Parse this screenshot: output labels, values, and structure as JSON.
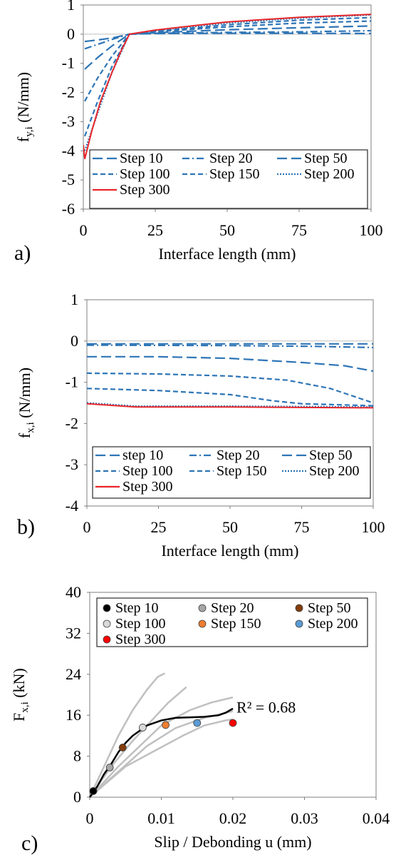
{
  "chart_data": [
    {
      "type": "line",
      "panel_label": "a)",
      "xlabel": "Interface length (mm)",
      "ylabel": "f",
      "ylabel_sub": "y,i",
      "ylabel_unit": " (N/mm)",
      "xlim": [
        0,
        100
      ],
      "ylim": [
        -6,
        1
      ],
      "xticks": [
        "0",
        "25",
        "50",
        "75",
        "100"
      ],
      "yticks": [
        "1",
        "0",
        "-1",
        "-2",
        "-3",
        "-4",
        "-5",
        "-6"
      ],
      "legend_placement": "lower-right",
      "colors": {
        "blue": "#2e75b6",
        "red": "#e8262b"
      },
      "series": [
        {
          "name": "Step 10",
          "color": "#2e75b6",
          "dash": "longdash",
          "points": [
            [
              0.5,
              -0.25
            ],
            [
              5,
              -0.2
            ],
            [
              10,
              -0.13
            ],
            [
              16,
              0
            ],
            [
              25,
              0.02
            ],
            [
              50,
              0.03
            ],
            [
              75,
              0.03
            ],
            [
              100,
              0.02
            ]
          ]
        },
        {
          "name": "Step 20",
          "color": "#2e75b6",
          "dash": "dashdot",
          "points": [
            [
              0.5,
              -0.5
            ],
            [
              5,
              -0.35
            ],
            [
              10,
              -0.18
            ],
            [
              16,
              0
            ],
            [
              25,
              0.03
            ],
            [
              50,
              0.06
            ],
            [
              75,
              0.08
            ],
            [
              100,
              0.12
            ]
          ]
        },
        {
          "name": "Step 50",
          "color": "#2e75b6",
          "dash": "longdash",
          "points": [
            [
              0.5,
              -1.2
            ],
            [
              5,
              -0.8
            ],
            [
              10,
              -0.4
            ],
            [
              16,
              0
            ],
            [
              25,
              0.05
            ],
            [
              50,
              0.15
            ],
            [
              75,
              0.22
            ],
            [
              100,
              0.28
            ]
          ]
        },
        {
          "name": "Step 100",
          "color": "#2e75b6",
          "dash": "dash",
          "points": [
            [
              0.5,
              -2.3
            ],
            [
              5,
              -1.5
            ],
            [
              10,
              -0.75
            ],
            [
              16,
              0
            ],
            [
              25,
              0.08
            ],
            [
              50,
              0.25
            ],
            [
              75,
              0.38
            ],
            [
              100,
              0.45
            ]
          ]
        },
        {
          "name": "Step 150",
          "color": "#2e75b6",
          "dash": "dash",
          "points": [
            [
              0.5,
              -3.5
            ],
            [
              5,
              -2.3
            ],
            [
              10,
              -1.1
            ],
            [
              16,
              0
            ],
            [
              25,
              0.1
            ],
            [
              50,
              0.32
            ],
            [
              75,
              0.48
            ],
            [
              100,
              0.57
            ]
          ]
        },
        {
          "name": "Step 200",
          "color": "#2e75b6",
          "dash": "dot",
          "points": [
            [
              0.5,
              -4.0
            ],
            [
              5,
              -2.7
            ],
            [
              10,
              -1.3
            ],
            [
              16,
              0
            ],
            [
              25,
              0.12
            ],
            [
              50,
              0.38
            ],
            [
              75,
              0.55
            ],
            [
              100,
              0.66
            ]
          ]
        },
        {
          "name": "Step 300",
          "color": "#e8262b",
          "dash": "solid",
          "points": [
            [
              0,
              -3.8
            ],
            [
              0.5,
              -4.28
            ],
            [
              3,
              -3.3
            ],
            [
              6,
              -2.3
            ],
            [
              10,
              -1.3
            ],
            [
              13,
              -0.6
            ],
            [
              16,
              0
            ],
            [
              25,
              0.14
            ],
            [
              50,
              0.42
            ],
            [
              75,
              0.58
            ],
            [
              100,
              0.68
            ]
          ]
        }
      ]
    },
    {
      "type": "line",
      "panel_label": "b)",
      "xlabel": "Interface length (mm)",
      "ylabel": "f",
      "ylabel_sub": "x,i",
      "ylabel_unit": " (N/mm)",
      "xlim": [
        0,
        100
      ],
      "ylim": [
        -4,
        1
      ],
      "xticks": [
        "0",
        "25",
        "50",
        "75",
        "100"
      ],
      "yticks": [
        "1",
        "0",
        "-1",
        "-2",
        "-3",
        "-4"
      ],
      "legend_placement": "bottom",
      "series": [
        {
          "name": "step 10",
          "color": "#2e75b6",
          "dash": "longdash",
          "points": [
            [
              0,
              -0.07
            ],
            [
              50,
              -0.07
            ],
            [
              100,
              -0.07
            ]
          ]
        },
        {
          "name": "Step 20",
          "color": "#2e75b6",
          "dash": "dashdot",
          "points": [
            [
              0,
              -0.1
            ],
            [
              50,
              -0.11
            ],
            [
              80,
              -0.13
            ],
            [
              100,
              -0.16
            ]
          ]
        },
        {
          "name": "Step 50",
          "color": "#2e75b6",
          "dash": "longdash",
          "points": [
            [
              0,
              -0.38
            ],
            [
              25,
              -0.38
            ],
            [
              50,
              -0.42
            ],
            [
              75,
              -0.52
            ],
            [
              90,
              -0.6
            ],
            [
              100,
              -0.73
            ]
          ]
        },
        {
          "name": "Step 100",
          "color": "#2e75b6",
          "dash": "dash",
          "points": [
            [
              0,
              -0.78
            ],
            [
              25,
              -0.8
            ],
            [
              50,
              -0.85
            ],
            [
              70,
              -0.95
            ],
            [
              85,
              -1.15
            ],
            [
              100,
              -1.5
            ]
          ]
        },
        {
          "name": "Step 150",
          "color": "#2e75b6",
          "dash": "dash",
          "points": [
            [
              0,
              -1.15
            ],
            [
              25,
              -1.2
            ],
            [
              50,
              -1.3
            ],
            [
              65,
              -1.45
            ],
            [
              75,
              -1.52
            ],
            [
              100,
              -1.57
            ]
          ]
        },
        {
          "name": "Step 200",
          "color": "#2e75b6",
          "dash": "dot",
          "points": [
            [
              0,
              -1.5
            ],
            [
              17,
              -1.58
            ],
            [
              50,
              -1.58
            ],
            [
              100,
              -1.6
            ]
          ]
        },
        {
          "name": "Step 300",
          "color": "#e8262b",
          "dash": "solid",
          "points": [
            [
              0,
              -1.52
            ],
            [
              17,
              -1.6
            ],
            [
              50,
              -1.6
            ],
            [
              100,
              -1.62
            ]
          ]
        }
      ]
    },
    {
      "type": "scatter",
      "panel_label": "c)",
      "xlabel": "Slip / Debonding u (mm)",
      "ylabel": "F",
      "ylabel_sub": "x,i",
      "ylabel_unit": " (kN)",
      "xlim": [
        0,
        0.04
      ],
      "ylim": [
        0,
        40
      ],
      "xticks": [
        "0",
        "0.01",
        "0.02",
        "0.03",
        "0.04"
      ],
      "yticks": [
        "40",
        "32",
        "24",
        "16",
        "8",
        "0"
      ],
      "legend_placement": "top",
      "annotation": "R² = 0.68",
      "points": [
        {
          "name": "Step 10",
          "color": "#000000",
          "x": 0.0005,
          "y": 1.2
        },
        {
          "name": "Step 20",
          "color": "#a6a6a6",
          "x": 0.0028,
          "y": 5.8
        },
        {
          "name": "Step 50",
          "color": "#843c0c",
          "x": 0.0046,
          "y": 9.7
        },
        {
          "name": "Step 100",
          "color": "#d9d9d9",
          "x": 0.0074,
          "y": 13.6
        },
        {
          "name": "Step 150",
          "color": "#ed7d31",
          "x": 0.0106,
          "y": 14.1
        },
        {
          "name": "Step 200",
          "color": "#5b9bd5",
          "x": 0.015,
          "y": 14.5
        },
        {
          "name": "Step 300",
          "color": "#ff0000",
          "x": 0.02,
          "y": 14.5
        }
      ],
      "trendline": [
        [
          0,
          0
        ],
        [
          0.001,
          2
        ],
        [
          0.002,
          4.5
        ],
        [
          0.003,
          6.5
        ],
        [
          0.004,
          8.8
        ],
        [
          0.005,
          10.6
        ],
        [
          0.006,
          12
        ],
        [
          0.008,
          14
        ],
        [
          0.01,
          15
        ],
        [
          0.012,
          15.5
        ],
        [
          0.014,
          15.6
        ],
        [
          0.016,
          15.7
        ],
        [
          0.018,
          16
        ],
        [
          0.019,
          16.5
        ],
        [
          0.02,
          17.3
        ]
      ],
      "background_curves": [
        [
          [
            0,
            0
          ],
          [
            0.002,
            6
          ],
          [
            0.004,
            12
          ],
          [
            0.006,
            17
          ],
          [
            0.008,
            21
          ],
          [
            0.0095,
            23.5
          ],
          [
            0.0105,
            24.2
          ]
        ],
        [
          [
            0,
            0
          ],
          [
            0.003,
            6
          ],
          [
            0.006,
            11
          ],
          [
            0.009,
            15.5
          ],
          [
            0.011,
            18.5
          ],
          [
            0.0135,
            21.5
          ]
        ],
        [
          [
            0,
            0
          ],
          [
            0.004,
            6
          ],
          [
            0.007,
            10
          ],
          [
            0.01,
            14
          ],
          [
            0.014,
            17
          ],
          [
            0.017,
            18.5
          ],
          [
            0.02,
            19.5
          ]
        ],
        [
          [
            0,
            0
          ],
          [
            0.005,
            6
          ],
          [
            0.009,
            9
          ],
          [
            0.013,
            12
          ],
          [
            0.016,
            14
          ],
          [
            0.019,
            15
          ],
          [
            0.02,
            15.2
          ]
        ],
        [
          [
            0,
            0
          ],
          [
            0.004,
            5
          ],
          [
            0.008,
            10
          ],
          [
            0.012,
            13.5
          ],
          [
            0.016,
            15.5
          ],
          [
            0.02,
            16.8
          ]
        ]
      ]
    }
  ]
}
